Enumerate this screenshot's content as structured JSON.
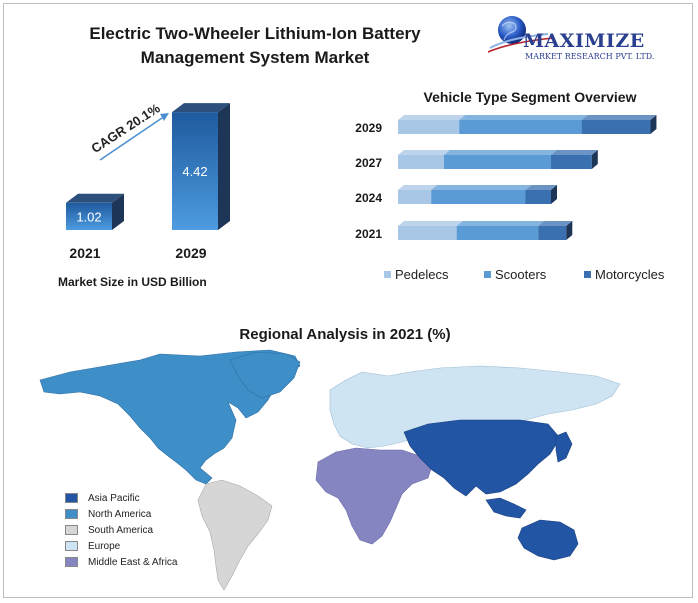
{
  "header": {
    "title_line1": "Electric Two-Wheeler Lithium-Ion Battery",
    "title_line2": "Management System Market"
  },
  "logo": {
    "name": "MAXIMIZE",
    "subtitle": "MARKET RESEARCH PVT. LTD."
  },
  "colors": {
    "pedelecs": "#a8c6e6",
    "scooters": "#5b9bd5",
    "motorcycles": "#3a6fb0",
    "bar_front": "#3e86c8",
    "bar_dark": "#1d3557",
    "asia_pacific": "#2355a5",
    "north_america": "#3e8ec7",
    "south_america": "#d6d6d6",
    "europe": "#cfe4f2",
    "mea": "#8585c2"
  },
  "chart_data": [
    {
      "type": "bar",
      "title": "",
      "categories": [
        "2021",
        "2029"
      ],
      "values": [
        1.02,
        4.42
      ],
      "value_labels": [
        "1.02",
        "4.42"
      ],
      "annotation": "CAGR 20.1%",
      "caption": "Market Size in USD Billion",
      "ylim": [
        0,
        4.8
      ]
    },
    {
      "type": "bar",
      "orientation": "horizontal",
      "stacked": true,
      "title": "Vehicle Type Segment Overview",
      "categories": [
        "2029",
        "2027",
        "2024",
        "2021"
      ],
      "series": [
        {
          "name": "Pedelecs",
          "values": [
            24,
            18,
            13,
            23
          ]
        },
        {
          "name": "Scooters",
          "values": [
            48,
            42,
            37,
            32
          ]
        },
        {
          "name": "Motorcycles",
          "values": [
            27,
            16,
            10,
            11
          ]
        }
      ],
      "grid": false,
      "legend": "bottom"
    },
    {
      "type": "map",
      "title": "Regional Analysis in 2021 (%)",
      "legend": "bottom-left",
      "regions": [
        {
          "name": "Asia Pacific",
          "color": "#2355a5"
        },
        {
          "name": "North America",
          "color": "#3e8ec7"
        },
        {
          "name": "South America",
          "color": "#d6d6d6"
        },
        {
          "name": "Europe",
          "color": "#cfe4f2"
        },
        {
          "name": "Middle East & Africa",
          "color": "#8585c2"
        }
      ]
    }
  ]
}
